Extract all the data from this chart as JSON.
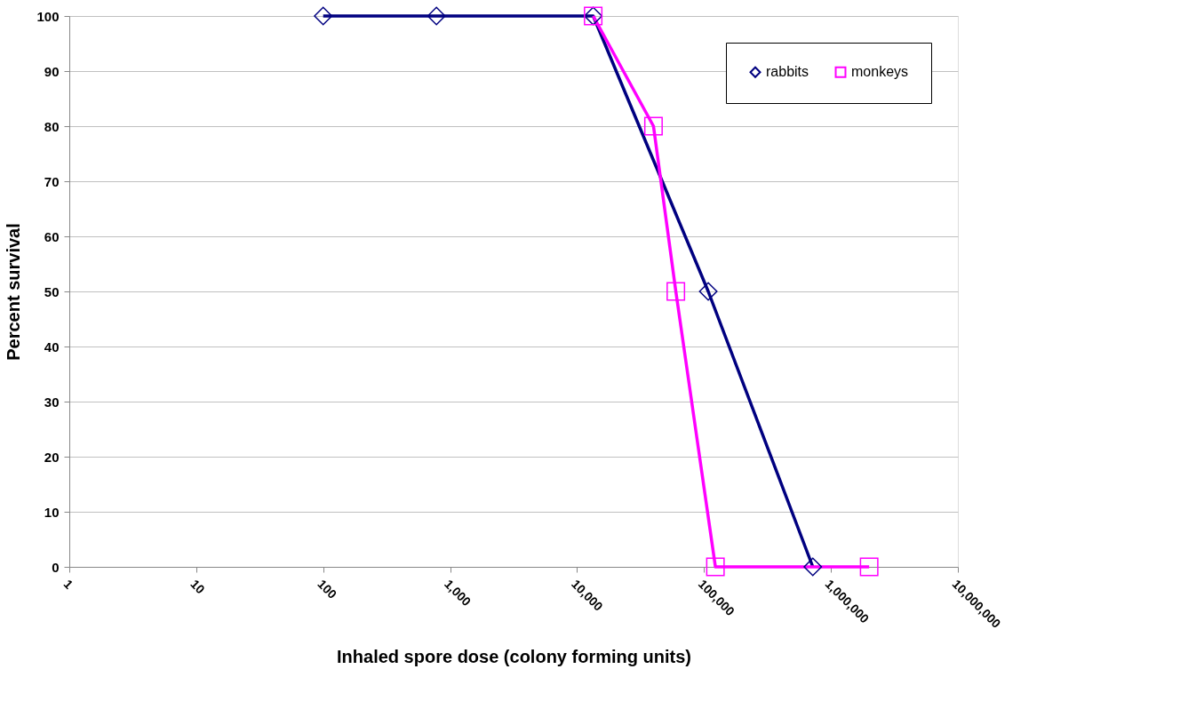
{
  "chart_data": {
    "type": "line",
    "xlabel": "Inhaled spore dose (colony forming units)",
    "ylabel": "Percent survival",
    "series": [
      {
        "name": "rabbits",
        "color": "#000080",
        "marker": "diamond",
        "x": [
          100,
          780,
          13400,
          108000,
          720000
        ],
        "values": [
          100,
          100,
          100,
          50,
          0
        ]
      },
      {
        "name": "monkeys",
        "color": "#ff00ff",
        "marker": "square",
        "x": [
          13400,
          40000,
          60000,
          123000,
          2000000
        ],
        "values": [
          100,
          80,
          50,
          0,
          0
        ]
      }
    ],
    "log": "x",
    "xlim": [
      1,
      10000000
    ],
    "xticks": [
      1,
      10,
      100,
      {
        "value": 1000,
        "label": "1,000"
      },
      {
        "value": 10000,
        "label": "10,000"
      },
      {
        "value": 100000,
        "label": "100,000"
      },
      {
        "value": 1000000,
        "label": "1,000,000"
      },
      {
        "value": 10000000,
        "label": "10,000,000"
      }
    ],
    "ylim": [
      0,
      100
    ],
    "yticks": [
      0,
      10,
      20,
      30,
      40,
      50,
      60,
      70,
      80,
      90,
      100
    ],
    "grid": "y",
    "legend": "top right",
    "line_style": "solid"
  }
}
